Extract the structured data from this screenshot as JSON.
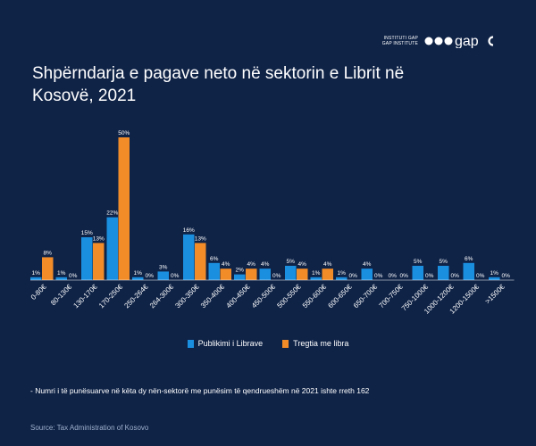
{
  "brand": {
    "line1": "INSTITUTI GAP",
    "line2": "GAP INSTITUTE",
    "wordmark": "gap"
  },
  "title": "Shpërndarja e pagave neto në sektorin e Librit në Kosovë, 2021",
  "note": "- Numri i të punësuarve në këta dy nën-sektorë me punësim të qendrueshëm në 2021 ishte rreth 162",
  "source": "Source: Tax Administration of Kosovo",
  "colors": {
    "background": "#0f2347",
    "series_publishing": "#1a8fe0",
    "series_trade": "#f28c28",
    "axis": "#ffffff"
  },
  "chart_data": {
    "type": "bar",
    "title": "Shpërndarja e pagave neto në sektorin e Librit në Kosovë, 2021",
    "xlabel": "",
    "ylabel": "",
    "ylim": [
      0,
      50
    ],
    "grid": false,
    "legend_position": "bottom",
    "categories": [
      "0-80€",
      "80-130€",
      "130-170€",
      "170-250€",
      "250-264€",
      "264-300€",
      "300-350€",
      "350-400€",
      "400-450€",
      "450-500€",
      "500-550€",
      "550-600€",
      "600-650€",
      "650-700€",
      "700-750€",
      "750-1000€",
      "1000-1200€",
      "1200-1500€",
      ">1500€"
    ],
    "series": [
      {
        "name": "Publikimi i Librave",
        "values": [
          1,
          1,
          15,
          22,
          1,
          3,
          16,
          6,
          2,
          4,
          5,
          1,
          1,
          4,
          0,
          5,
          5,
          6,
          1
        ],
        "labels": [
          "1%",
          "1%",
          "15%",
          "22%",
          "1%",
          "3%",
          "16%",
          "6%",
          "2%",
          "4%",
          "5%",
          "1%",
          "1%",
          "4%",
          "0%",
          "5%",
          "5%",
          "6%",
          "1%"
        ]
      },
      {
        "name": "Tregtia me libra",
        "values": [
          8,
          0,
          13,
          50,
          0,
          0,
          13,
          4,
          4,
          0,
          4,
          4,
          0,
          0,
          0,
          0,
          0,
          0,
          0
        ],
        "labels": [
          "8%",
          "0%",
          "13%",
          "50%",
          "0%",
          "0%",
          "13%",
          "4%",
          "4%",
          "0%",
          "4%",
          "4%",
          "0%",
          "0%",
          "0%",
          "0%",
          "0%",
          "0%",
          "0%"
        ]
      }
    ]
  }
}
